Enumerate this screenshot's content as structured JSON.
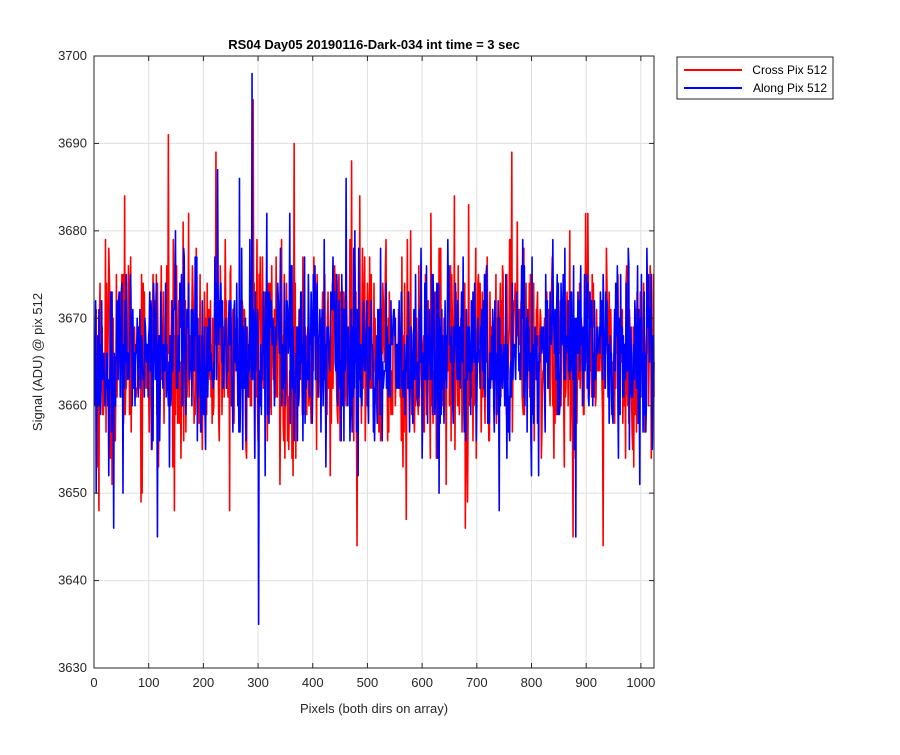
{
  "chart_data": {
    "type": "line",
    "title": "RS04 Day05 20190116-Dark-034 int time = 3 sec",
    "xlabel": "Pixels (both dirs on array)",
    "ylabel": "Signal (ADU) @ pix 512",
    "xlim": [
      0,
      1024
    ],
    "ylim": [
      3630,
      3700
    ],
    "xticks": [
      "0",
      "100",
      "200",
      "300",
      "400",
      "500",
      "600",
      "700",
      "800",
      "900",
      "1000"
    ],
    "yticks": [
      "3630",
      "3640",
      "3650",
      "3660",
      "3670",
      "3680",
      "3690",
      "3700"
    ],
    "xtick_values": [
      0,
      100,
      200,
      300,
      400,
      500,
      600,
      700,
      800,
      900,
      1000
    ],
    "ytick_values": [
      3630,
      3640,
      3650,
      3660,
      3670,
      3680,
      3690,
      3700
    ],
    "grid": true,
    "legend_position": "outside-top-right",
    "series": [
      {
        "name": "Cross Pix 512",
        "color": "#ff0000",
        "mean": 3666.0,
        "std": 6.0,
        "n_points": 1024,
        "extremes": [
          {
            "x": 8,
            "y": 3648
          },
          {
            "x": 20,
            "y": 3679
          },
          {
            "x": 55,
            "y": 3684
          },
          {
            "x": 135,
            "y": 3691
          },
          {
            "x": 222,
            "y": 3689
          },
          {
            "x": 290,
            "y": 3695
          },
          {
            "x": 365,
            "y": 3690
          },
          {
            "x": 480,
            "y": 3644
          },
          {
            "x": 470,
            "y": 3688
          },
          {
            "x": 570,
            "y": 3647
          },
          {
            "x": 678,
            "y": 3646
          },
          {
            "x": 763,
            "y": 3689
          },
          {
            "x": 875,
            "y": 3645
          },
          {
            "x": 930,
            "y": 3644
          },
          {
            "x": 1018,
            "y": 3654
          }
        ]
      },
      {
        "name": "Along Pix 512",
        "color": "#0000ff",
        "mean": 3666.0,
        "std": 5.5,
        "n_points": 1024,
        "extremes": [
          {
            "x": 35,
            "y": 3646
          },
          {
            "x": 115,
            "y": 3645
          },
          {
            "x": 225,
            "y": 3687
          },
          {
            "x": 265,
            "y": 3686
          },
          {
            "x": 288,
            "y": 3698
          },
          {
            "x": 300,
            "y": 3635
          },
          {
            "x": 460,
            "y": 3686
          },
          {
            "x": 740,
            "y": 3648
          },
          {
            "x": 880,
            "y": 3645
          }
        ]
      }
    ]
  }
}
